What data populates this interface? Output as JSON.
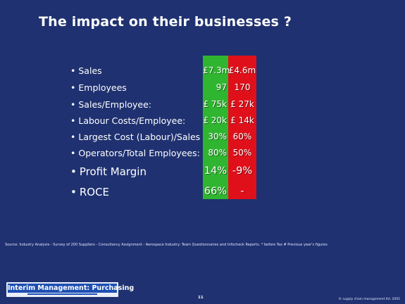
{
  "title": "The impact on their businesses ?",
  "bullet": "•",
  "colors": {
    "background": "#1f3170",
    "green_column": "#2fb52f",
    "red_column": "#e0101a"
  },
  "rows": [
    {
      "label": "Sales",
      "green": "£7.3m",
      "red": "£4.6m"
    },
    {
      "label": "Employees",
      "green": "97",
      "red": "170"
    },
    {
      "label": "Sales/Employee:",
      "green": "£ 75k",
      "red": "£ 27k"
    },
    {
      "label": "Labour Costs/Employee:",
      "green": "£ 20k",
      "red": "£ 14k"
    },
    {
      "label": "Largest Cost (Labour)/Sales",
      "green": "30%",
      "red": "60%"
    },
    {
      "label": "Operators/Total Employees:",
      "green": "80%",
      "red": "50%"
    },
    {
      "label": "Profit Margin",
      "green": "14%",
      "red": "-9%"
    },
    {
      "label": "ROCE",
      "green": "66%",
      "red": "-"
    }
  ],
  "source": "Source: Industry Analysis - Survey of 200 Suppliers -   Consultancy Assignment - Aerospace Industry: Team Questionnaires and Infocheck Reports. * before Tax      # Previous year's figures",
  "brand": "Interim Management: Purchasing",
  "page_number": "11",
  "copyright": "© supply chain management ltd. 2005"
}
